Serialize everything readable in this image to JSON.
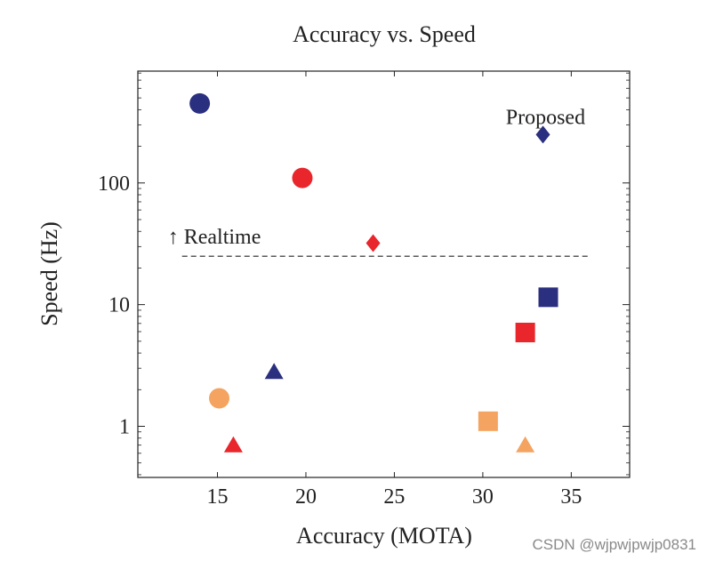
{
  "chart_data": {
    "type": "scatter",
    "title": "Accuracy vs. Speed",
    "xlabel": "Accuracy (MOTA)",
    "ylabel": "Speed (Hz)",
    "xlim": [
      10.5,
      38.3
    ],
    "ylim": [
      0.38,
      830
    ],
    "yscale": "log",
    "xticks": [
      15,
      20,
      25,
      30,
      35
    ],
    "xtick_labels": [
      "15",
      "20",
      "25",
      "30",
      "35"
    ],
    "yticks": [
      1,
      10,
      100
    ],
    "ytick_labels": [
      "1",
      "10",
      "100"
    ],
    "grid": false,
    "points": [
      {
        "x": 14.0,
        "y": 450,
        "marker": "circle",
        "color": "#2b2f7f"
      },
      {
        "x": 19.8,
        "y": 110,
        "marker": "circle",
        "color": "#e8262c"
      },
      {
        "x": 15.1,
        "y": 1.7,
        "marker": "circle",
        "color": "#f4a460"
      },
      {
        "x": 18.2,
        "y": 2.8,
        "marker": "triangle",
        "color": "#2b2f7f"
      },
      {
        "x": 15.9,
        "y": 0.7,
        "marker": "triangle",
        "color": "#e8262c"
      },
      {
        "x": 32.4,
        "y": 0.7,
        "marker": "triangle",
        "color": "#f4a460"
      },
      {
        "x": 23.8,
        "y": 32,
        "marker": "diamond",
        "color": "#e8262c"
      },
      {
        "x": 33.4,
        "y": 250,
        "marker": "diamond",
        "color": "#2b2f7f"
      },
      {
        "x": 33.7,
        "y": 11.5,
        "marker": "square",
        "color": "#2b2f7f"
      },
      {
        "x": 32.4,
        "y": 5.9,
        "marker": "square",
        "color": "#e8262c"
      },
      {
        "x": 30.3,
        "y": 1.1,
        "marker": "square",
        "color": "#f4a460"
      }
    ],
    "reference_line": {
      "y": 25,
      "x_start": 13.0,
      "x_end": 36.1,
      "label": "↑ Realtime"
    },
    "annotations": [
      {
        "text": "Proposed",
        "x": 31.3,
        "y": 350
      }
    ]
  },
  "watermark": "CSDN @wjpwjpwjp0831"
}
